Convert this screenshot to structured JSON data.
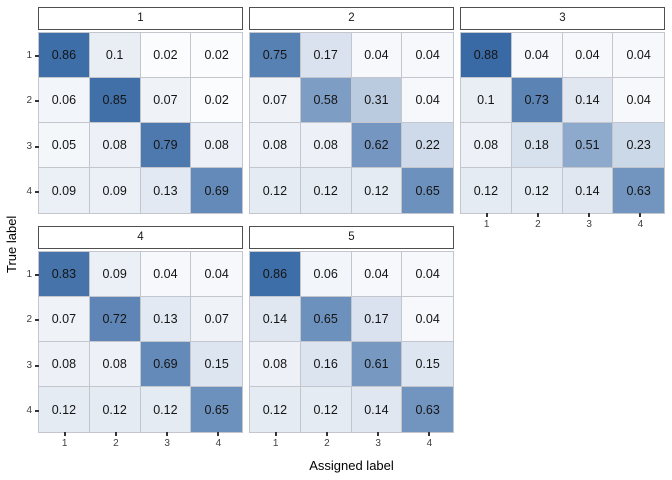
{
  "figure": {
    "x_axis_title": "Assigned label",
    "y_axis_title": "True label"
  },
  "chart_data": {
    "type": "heatmap",
    "description": "Faceted confusion matrices (row-normalized proportions), facets 1-5",
    "x_ticks": [
      "1",
      "2",
      "3",
      "4"
    ],
    "y_ticks": [
      "1",
      "2",
      "3",
      "4"
    ],
    "xlabel": "Assigned label",
    "ylabel": "True label",
    "color_scale": {
      "low_value_color": "#ffffff",
      "high_value_color": "#1f5699",
      "domain": [
        0,
        1
      ]
    },
    "legend": "none",
    "facets": [
      {
        "label": "1",
        "rows": [
          [
            0.86,
            0.1,
            0.02,
            0.02
          ],
          [
            0.06,
            0.85,
            0.07,
            0.02
          ],
          [
            0.05,
            0.08,
            0.79,
            0.08
          ],
          [
            0.09,
            0.09,
            0.13,
            0.69
          ]
        ]
      },
      {
        "label": "2",
        "rows": [
          [
            0.75,
            0.17,
            0.04,
            0.04
          ],
          [
            0.07,
            0.58,
            0.31,
            0.04
          ],
          [
            0.08,
            0.08,
            0.62,
            0.22
          ],
          [
            0.12,
            0.12,
            0.12,
            0.65
          ]
        ]
      },
      {
        "label": "3",
        "rows": [
          [
            0.88,
            0.04,
            0.04,
            0.04
          ],
          [
            0.1,
            0.73,
            0.14,
            0.04
          ],
          [
            0.08,
            0.18,
            0.51,
            0.23
          ],
          [
            0.12,
            0.12,
            0.14,
            0.63
          ]
        ]
      },
      {
        "label": "4",
        "rows": [
          [
            0.83,
            0.09,
            0.04,
            0.04
          ],
          [
            0.07,
            0.72,
            0.13,
            0.07
          ],
          [
            0.08,
            0.08,
            0.69,
            0.15
          ],
          [
            0.12,
            0.12,
            0.12,
            0.65
          ]
        ]
      },
      {
        "label": "5",
        "rows": [
          [
            0.86,
            0.06,
            0.04,
            0.04
          ],
          [
            0.14,
            0.65,
            0.17,
            0.04
          ],
          [
            0.08,
            0.16,
            0.61,
            0.15
          ],
          [
            0.12,
            0.12,
            0.14,
            0.63
          ]
        ]
      }
    ]
  }
}
